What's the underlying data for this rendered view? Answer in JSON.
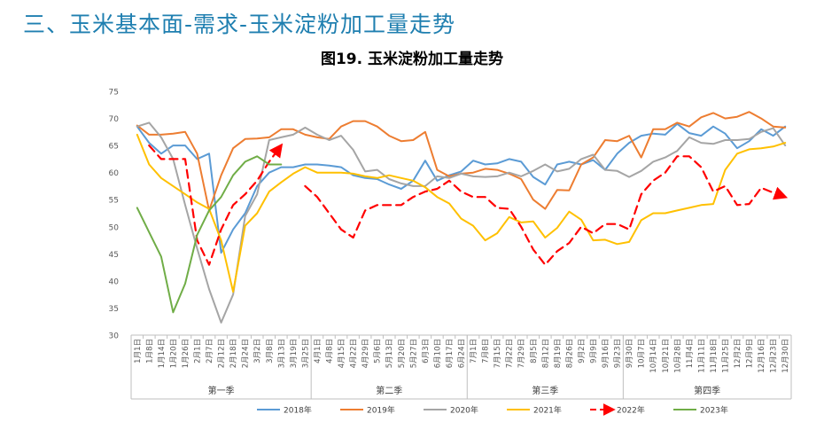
{
  "page": {
    "title": "三、玉米基本面-需求-玉米淀粉加工量走势"
  },
  "chart_data": {
    "type": "line",
    "title": "图19. 玉米淀粉加工量走势",
    "ylim": [
      30,
      75
    ],
    "yticks": [
      30,
      35,
      40,
      45,
      50,
      55,
      60,
      65,
      70,
      75
    ],
    "grid": false,
    "legend_position": "bottom",
    "categories": [
      "1月1日",
      "1月8日",
      "1月14日",
      "1月20日",
      "1月26日",
      "2月1日",
      "2月7日",
      "2月12日",
      "2月18日",
      "2月24日",
      "3月2日",
      "3月8日",
      "3月13日",
      "3月19日",
      "3月25日",
      "4月1日",
      "4月8日",
      "4月15日",
      "4月22日",
      "4月29日",
      "5月6日",
      "5月13日",
      "5月20日",
      "5月27日",
      "6月3日",
      "6月10日",
      "6月17日",
      "6月24日",
      "7月1日",
      "7月8日",
      "7月15日",
      "7月22日",
      "7月29日",
      "8月5日",
      "8月12日",
      "8月19日",
      "8月26日",
      "9月2日",
      "9月9日",
      "9月16日",
      "9月23日",
      "9月30日",
      "10月7日",
      "10月14日",
      "10月21日",
      "10月28日",
      "11月4日",
      "11月11日",
      "11月18日",
      "11月25日",
      "12月2日",
      "12月9日",
      "12月16日",
      "12月23日",
      "12月30日"
    ],
    "quarters": [
      {
        "label": "第一季",
        "start": 0,
        "end": 14
      },
      {
        "label": "第二季",
        "start": 15,
        "end": 27
      },
      {
        "label": "第三季",
        "start": 28,
        "end": 40
      },
      {
        "label": "第四季",
        "start": 41,
        "end": 54
      }
    ],
    "series": [
      {
        "name": "2018年",
        "color": "#5b9bd5",
        "dash": false,
        "arrow": false,
        "values": [
          68.5,
          65.5,
          63.5,
          65.0,
          65.0,
          62.5,
          63.5,
          45.2,
          49.5,
          52.5,
          57.5,
          60.0,
          61.0,
          61.0,
          61.5,
          61.5,
          61.3,
          61.0,
          59.5,
          59.0,
          58.8,
          57.8,
          57.0,
          58.5,
          62.2,
          58.5,
          59.5,
          60.2,
          62.2,
          61.5,
          61.7,
          62.5,
          62.0,
          59.2,
          57.8,
          61.5,
          62.0,
          61.5,
          62.3,
          60.5,
          63.5,
          65.5,
          66.8,
          67.2,
          67.0,
          69.0,
          67.3,
          66.8,
          68.5,
          67.2,
          64.5,
          65.8,
          68.0,
          66.8,
          68.5
        ]
      },
      {
        "name": "2019年",
        "color": "#ed7d31",
        "dash": false,
        "arrow": false,
        "values": [
          68.7,
          67.0,
          67.0,
          67.2,
          67.5,
          63.5,
          53.0,
          59.5,
          64.5,
          66.2,
          66.3,
          66.5,
          68.0,
          68.0,
          67.0,
          66.5,
          66.2,
          68.5,
          69.5,
          69.5,
          68.5,
          66.8,
          65.8,
          66.0,
          67.5,
          60.5,
          59.3,
          59.8,
          60.0,
          60.7,
          60.5,
          59.8,
          58.8,
          55.0,
          53.3,
          56.8,
          56.7,
          61.5,
          62.8,
          66.0,
          65.8,
          66.8,
          62.8,
          68.0,
          68.0,
          69.2,
          68.5,
          70.2,
          71.0,
          70.0,
          70.3,
          71.2,
          70.0,
          68.5,
          68.3
        ]
      },
      {
        "name": "2020年",
        "color": "#a5a5a5",
        "dash": false,
        "arrow": false,
        "values": [
          68.5,
          69.2,
          66.5,
          62.5,
          54.0,
          46.0,
          38.5,
          32.3,
          37.5,
          52.0,
          56.0,
          66.0,
          66.5,
          67.0,
          68.3,
          67.0,
          66.0,
          66.8,
          64.2,
          60.2,
          60.5,
          58.8,
          58.0,
          57.5,
          57.5,
          59.3,
          59.0,
          59.8,
          59.3,
          59.2,
          59.3,
          60.0,
          59.3,
          60.3,
          61.5,
          60.2,
          60.7,
          62.5,
          63.3,
          60.5,
          60.3,
          59.2,
          60.3,
          62.0,
          62.8,
          64.0,
          66.5,
          65.5,
          65.3,
          66.0,
          66.0,
          66.2,
          67.5,
          68.2,
          65.0
        ]
      },
      {
        "name": "2021年",
        "color": "#ffc000",
        "dash": false,
        "arrow": false,
        "values": [
          67.0,
          61.5,
          59.0,
          57.5,
          56.0,
          54.5,
          53.3,
          47.5,
          38.0,
          50.2,
          52.5,
          56.5,
          58.2,
          59.8,
          61.0,
          60.0,
          60.0,
          60.0,
          59.8,
          59.3,
          59.0,
          59.5,
          59.0,
          58.5,
          57.3,
          55.5,
          54.3,
          51.5,
          50.2,
          47.5,
          48.8,
          51.8,
          50.8,
          51.0,
          48.0,
          49.8,
          52.8,
          51.3,
          47.5,
          47.6,
          46.8,
          47.2,
          51.2,
          52.5,
          52.5,
          53.0,
          53.5,
          54.0,
          54.2,
          60.5,
          63.5,
          64.3,
          64.5,
          64.8,
          65.5
        ]
      },
      {
        "name": "2022年",
        "color": "#ff0000",
        "dash": true,
        "arrow": true,
        "values": [
          null,
          65.0,
          62.5,
          62.5,
          62.5,
          47.5,
          43.0,
          49.5,
          54.0,
          56.0,
          58.5,
          62.0,
          65.0,
          null,
          57.5,
          55.5,
          52.5,
          49.5,
          48.0,
          53.0,
          54.0,
          54.0,
          54.0,
          55.5,
          56.5,
          57.0,
          58.5,
          56.5,
          55.5,
          55.5,
          53.5,
          53.3,
          50.0,
          45.8,
          43.0,
          45.5,
          47.0,
          50.0,
          48.8,
          50.5,
          50.5,
          49.5,
          56.0,
          58.5,
          60.0,
          63.0,
          63.0,
          61.0,
          56.5,
          57.5,
          54.0,
          54.2,
          57.2,
          56.3,
          55.5
        ]
      },
      {
        "name": "2023年",
        "color": "#70ad47",
        "dash": false,
        "arrow": false,
        "values": [
          53.5,
          49.0,
          44.5,
          34.2,
          39.5,
          48.5,
          53.0,
          55.5,
          59.5,
          62.0,
          63.0,
          61.5,
          61.5,
          null,
          null,
          null,
          null,
          null,
          null,
          null,
          null,
          null,
          null,
          null,
          null,
          null,
          null,
          null,
          null,
          null,
          null,
          null,
          null,
          null,
          null,
          null,
          null,
          null,
          null,
          null,
          null,
          null,
          null,
          null,
          null,
          null,
          null,
          null,
          null,
          null,
          null,
          null,
          null,
          null,
          null
        ]
      }
    ]
  }
}
